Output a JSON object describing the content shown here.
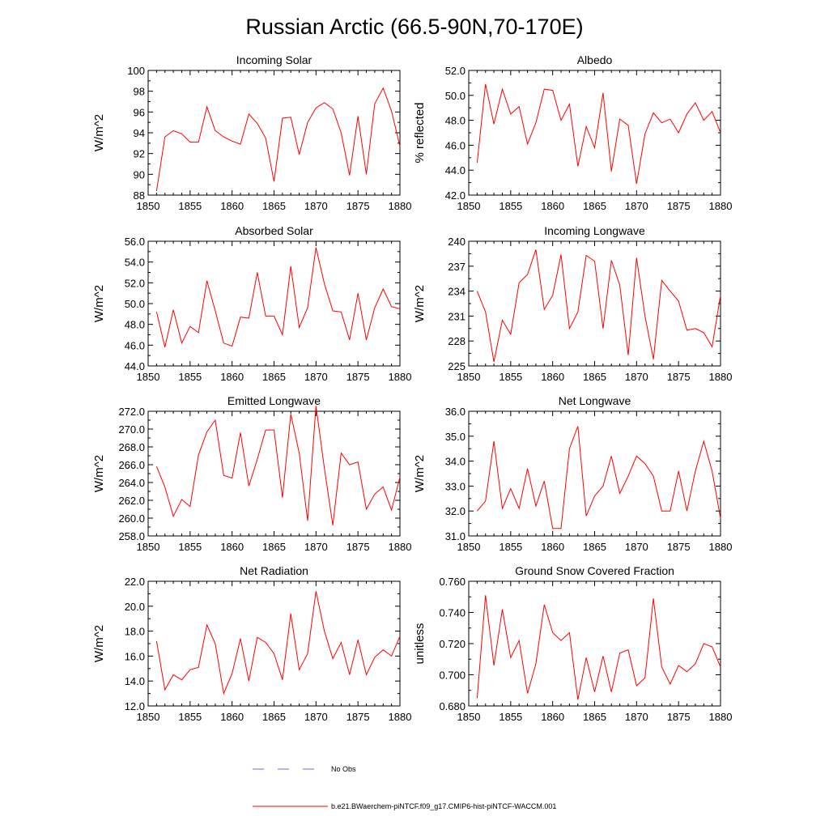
{
  "figure": {
    "title": "Russian Arctic (66.5-90N,70-170E)"
  },
  "legend": {
    "obs_label": "No Obs",
    "obs_color": "#6a6ad0",
    "model_label": "b.e21.BWaerchem-piNTCF.f09_g17.CMIP6-hist-piNTCF-WACCM.001",
    "model_color": "#ff0000"
  },
  "chart_data": [
    {
      "type": "line",
      "title": "Incoming Solar",
      "ylabel": "W/m^2",
      "xlim": [
        1850,
        1880
      ],
      "xticks": [
        1850,
        1855,
        1860,
        1865,
        1870,
        1875,
        1880
      ],
      "ylim": [
        88,
        100
      ],
      "yticks": [
        88,
        90,
        92,
        94,
        96,
        98,
        100
      ],
      "ytick_labels": [
        "88",
        "90",
        "92",
        "94",
        "96",
        "98",
        "100"
      ],
      "series": [
        {
          "color": "#ff0000",
          "x": [
            1851,
            1852,
            1853,
            1854,
            1855,
            1856,
            1857,
            1858,
            1859,
            1860,
            1861,
            1862,
            1863,
            1864,
            1865,
            1866,
            1867,
            1868,
            1869,
            1870,
            1871,
            1872,
            1873,
            1874,
            1875,
            1876,
            1877,
            1878,
            1879,
            1880
          ],
          "values": [
            88.4,
            93.6,
            94.2,
            93.9,
            93.1,
            93.1,
            96.5,
            94.2,
            93.6,
            93.2,
            92.9,
            95.8,
            94.9,
            93.5,
            89.3,
            95.4,
            95.5,
            91.9,
            95.0,
            96.4,
            96.9,
            96.3,
            94.0,
            89.9,
            95.6,
            90.0,
            96.8,
            98.3,
            96.1,
            92.7
          ]
        }
      ]
    },
    {
      "type": "line",
      "title": "Albedo",
      "ylabel": "% reflected",
      "xlim": [
        1850,
        1880
      ],
      "xticks": [
        1850,
        1855,
        1860,
        1865,
        1870,
        1875,
        1880
      ],
      "ylim": [
        42,
        52
      ],
      "yticks": [
        42,
        44,
        46,
        48,
        50,
        52
      ],
      "ytick_labels": [
        "42.0",
        "44.0",
        "46.0",
        "48.0",
        "50.0",
        "52.0"
      ],
      "series": [
        {
          "color": "#ff0000",
          "x": [
            1851,
            1852,
            1853,
            1854,
            1855,
            1856,
            1857,
            1858,
            1859,
            1860,
            1861,
            1862,
            1863,
            1864,
            1865,
            1866,
            1867,
            1868,
            1869,
            1870,
            1871,
            1872,
            1873,
            1874,
            1875,
            1876,
            1877,
            1878,
            1879,
            1880
          ],
          "values": [
            44.6,
            50.9,
            47.7,
            50.5,
            48.5,
            49.1,
            46.1,
            47.8,
            50.5,
            50.4,
            48.0,
            49.3,
            44.3,
            47.5,
            45.8,
            50.2,
            43.9,
            48.1,
            47.6,
            42.9,
            46.9,
            48.6,
            47.8,
            48.1,
            47.0,
            48.5,
            49.4,
            48.0,
            48.7,
            47.0
          ]
        }
      ]
    },
    {
      "type": "line",
      "title": "Absorbed Solar",
      "ylabel": "W/m^2",
      "xlim": [
        1850,
        1880
      ],
      "xticks": [
        1850,
        1855,
        1860,
        1865,
        1870,
        1875,
        1880
      ],
      "ylim": [
        44,
        56
      ],
      "yticks": [
        44,
        46,
        48,
        50,
        52,
        54,
        56
      ],
      "ytick_labels": [
        "44.0",
        "46.0",
        "48.0",
        "50.0",
        "52.0",
        "54.0",
        "56.0"
      ],
      "series": [
        {
          "color": "#ff0000",
          "x": [
            1851,
            1852,
            1853,
            1854,
            1855,
            1856,
            1857,
            1858,
            1859,
            1860,
            1861,
            1862,
            1863,
            1864,
            1865,
            1866,
            1867,
            1868,
            1869,
            1870,
            1871,
            1872,
            1873,
            1874,
            1875,
            1876,
            1877,
            1878,
            1879,
            1880
          ],
          "values": [
            49.2,
            45.8,
            49.4,
            46.2,
            47.8,
            47.2,
            52.2,
            49.3,
            46.2,
            45.9,
            48.7,
            48.6,
            53.0,
            48.8,
            48.8,
            47.0,
            53.6,
            47.7,
            49.6,
            55.4,
            51.9,
            49.3,
            49.2,
            46.5,
            51.0,
            46.5,
            49.6,
            51.4,
            49.7,
            49.5
          ]
        }
      ]
    },
    {
      "type": "line",
      "title": "Incoming Longwave",
      "ylabel": "W/m^2",
      "xlim": [
        1850,
        1880
      ],
      "xticks": [
        1850,
        1855,
        1860,
        1865,
        1870,
        1875,
        1880
      ],
      "ylim": [
        225,
        240
      ],
      "yticks": [
        225,
        228,
        231,
        234,
        237,
        240
      ],
      "ytick_labels": [
        "225",
        "228",
        "231",
        "234",
        "237",
        "240"
      ],
      "series": [
        {
          "color": "#ff0000",
          "x": [
            1851,
            1852,
            1853,
            1854,
            1855,
            1856,
            1857,
            1858,
            1859,
            1860,
            1861,
            1862,
            1863,
            1864,
            1865,
            1866,
            1867,
            1868,
            1869,
            1870,
            1871,
            1872,
            1873,
            1874,
            1875,
            1876,
            1877,
            1878,
            1879,
            1880
          ],
          "values": [
            234.0,
            231.5,
            225.5,
            230.5,
            228.8,
            235.0,
            236.0,
            239.0,
            231.8,
            233.5,
            238.4,
            229.5,
            231.5,
            238.3,
            237.6,
            229.5,
            237.7,
            234.7,
            226.3,
            238.0,
            231.0,
            225.8,
            235.3,
            234.0,
            232.8,
            229.3,
            229.5,
            229.0,
            227.3,
            233.5
          ]
        }
      ]
    },
    {
      "type": "line",
      "title": "Emitted Longwave",
      "ylabel": "W/m^2",
      "xlim": [
        1850,
        1880
      ],
      "xticks": [
        1850,
        1855,
        1860,
        1865,
        1870,
        1875,
        1880
      ],
      "ylim": [
        258,
        272
      ],
      "yticks": [
        258,
        260,
        262,
        264,
        266,
        268,
        270,
        272
      ],
      "ytick_labels": [
        "258.0",
        "260.0",
        "262.0",
        "264.0",
        "266.0",
        "268.0",
        "270.0",
        "272.0"
      ],
      "series": [
        {
          "color": "#ff0000",
          "x": [
            1851,
            1852,
            1853,
            1854,
            1855,
            1856,
            1857,
            1858,
            1859,
            1860,
            1861,
            1862,
            1863,
            1864,
            1865,
            1866,
            1867,
            1868,
            1869,
            1870,
            1871,
            1872,
            1873,
            1874,
            1875,
            1876,
            1877,
            1878,
            1879,
            1880
          ],
          "values": [
            265.8,
            263.5,
            260.2,
            262.1,
            261.3,
            267.1,
            269.7,
            271.0,
            264.8,
            264.5,
            269.6,
            263.6,
            266.6,
            269.9,
            269.9,
            262.3,
            271.7,
            267.3,
            259.7,
            272.6,
            265.6,
            259.2,
            267.3,
            266.0,
            266.3,
            261.0,
            262.7,
            263.5,
            260.9,
            264.6
          ]
        }
      ]
    },
    {
      "type": "line",
      "title": "Net Longwave",
      "ylabel": "W/m^2",
      "xlim": [
        1850,
        1880
      ],
      "xticks": [
        1850,
        1855,
        1860,
        1865,
        1870,
        1875,
        1880
      ],
      "ylim": [
        31,
        36
      ],
      "yticks": [
        31,
        32,
        33,
        34,
        35,
        36
      ],
      "ytick_labels": [
        "31.0",
        "32.0",
        "33.0",
        "34.0",
        "35.0",
        "36.0"
      ],
      "series": [
        {
          "color": "#ff0000",
          "x": [
            1851,
            1852,
            1853,
            1854,
            1855,
            1856,
            1857,
            1858,
            1859,
            1860,
            1861,
            1862,
            1863,
            1864,
            1865,
            1866,
            1867,
            1868,
            1869,
            1870,
            1871,
            1872,
            1873,
            1874,
            1875,
            1876,
            1877,
            1878,
            1879,
            1880
          ],
          "values": [
            32.0,
            32.4,
            34.8,
            32.1,
            32.9,
            32.1,
            33.7,
            32.2,
            33.2,
            31.3,
            31.3,
            34.5,
            35.4,
            31.8,
            32.6,
            33.0,
            34.2,
            32.7,
            33.4,
            34.2,
            33.9,
            33.4,
            32.0,
            32.0,
            33.6,
            32.0,
            33.6,
            34.8,
            33.6,
            31.7
          ]
        }
      ]
    },
    {
      "type": "line",
      "title": "Net Radiation",
      "ylabel": "W/m^2",
      "xlim": [
        1850,
        1880
      ],
      "xticks": [
        1850,
        1855,
        1860,
        1865,
        1870,
        1875,
        1880
      ],
      "ylim": [
        12,
        22
      ],
      "yticks": [
        12,
        14,
        16,
        18,
        20,
        22
      ],
      "ytick_labels": [
        "12.0",
        "14.0",
        "16.0",
        "18.0",
        "20.0",
        "22.0"
      ],
      "series": [
        {
          "color": "#ff0000",
          "x": [
            1851,
            1852,
            1853,
            1854,
            1855,
            1856,
            1857,
            1858,
            1859,
            1860,
            1861,
            1862,
            1863,
            1864,
            1865,
            1866,
            1867,
            1868,
            1869,
            1870,
            1871,
            1872,
            1873,
            1874,
            1875,
            1876,
            1877,
            1878,
            1879,
            1880
          ],
          "values": [
            17.2,
            13.3,
            14.5,
            14.1,
            14.9,
            15.1,
            18.5,
            17.0,
            13.0,
            14.6,
            17.4,
            14.0,
            17.5,
            17.1,
            16.2,
            14.1,
            19.4,
            14.9,
            16.2,
            21.2,
            18.0,
            15.8,
            17.1,
            14.5,
            17.3,
            14.5,
            15.9,
            16.5,
            16.0,
            17.6
          ]
        }
      ]
    },
    {
      "type": "line",
      "title": "Ground Snow Covered Fraction",
      "ylabel": "unitless",
      "xlim": [
        1850,
        1880
      ],
      "xticks": [
        1850,
        1855,
        1860,
        1865,
        1870,
        1875,
        1880
      ],
      "ylim": [
        0.68,
        0.76
      ],
      "yticks": [
        0.68,
        0.7,
        0.72,
        0.74,
        0.76
      ],
      "ytick_labels": [
        "0.680",
        "0.700",
        "0.720",
        "0.740",
        "0.760"
      ],
      "series": [
        {
          "color": "#ff0000",
          "x": [
            1851,
            1852,
            1853,
            1854,
            1855,
            1856,
            1857,
            1858,
            1859,
            1860,
            1861,
            1862,
            1863,
            1864,
            1865,
            1866,
            1867,
            1868,
            1869,
            1870,
            1871,
            1872,
            1873,
            1874,
            1875,
            1876,
            1877,
            1878,
            1879,
            1880
          ],
          "values": [
            0.685,
            0.751,
            0.706,
            0.742,
            0.711,
            0.722,
            0.688,
            0.707,
            0.745,
            0.727,
            0.722,
            0.727,
            0.684,
            0.711,
            0.689,
            0.712,
            0.689,
            0.714,
            0.716,
            0.693,
            0.698,
            0.749,
            0.705,
            0.694,
            0.706,
            0.702,
            0.707,
            0.72,
            0.718,
            0.705
          ]
        }
      ]
    }
  ]
}
